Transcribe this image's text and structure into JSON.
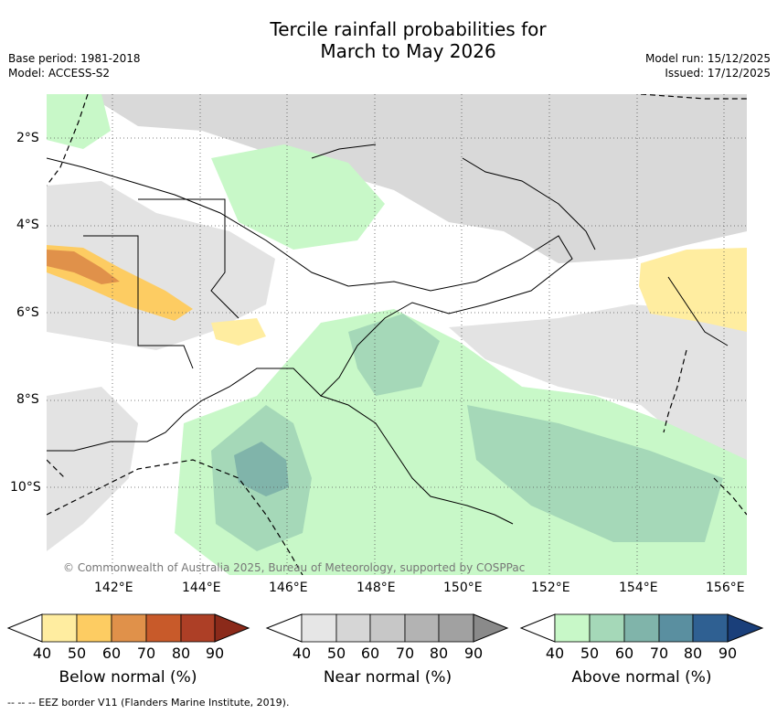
{
  "title": {
    "line1": "Tercile rainfall probabilities for",
    "line2": "March to May 2026"
  },
  "meta": {
    "base_period": "Base period: 1981-2018",
    "model": "Model: ACCESS-S2",
    "model_run": "Model run: 15/12/2025",
    "issued": "Issued: 17/12/2025"
  },
  "map": {
    "lat_labels": [
      "2°S",
      "4°S",
      "6°S",
      "8°S",
      "10°S"
    ],
    "lon_labels": [
      "142°E",
      "144°E",
      "146°E",
      "148°E",
      "150°E",
      "152°E",
      "154°E",
      "156°E"
    ],
    "copyright": "© Commonwealth of Australia 2025, Bureau of Meteorology, supported by COSPPac"
  },
  "colorbars": [
    {
      "label": "Below normal (%)",
      "ticks": [
        "40",
        "50",
        "60",
        "70",
        "80",
        "90"
      ],
      "colors": [
        "#ffeda0",
        "#fdcc62",
        "#e0914a",
        "#c85a2a",
        "#ad3f26",
        "#8b2a1a"
      ]
    },
    {
      "label": "Near normal (%)",
      "ticks": [
        "40",
        "50",
        "60",
        "70",
        "80",
        "90"
      ],
      "colors": [
        "#e6e6e6",
        "#d6d6d6",
        "#c7c7c7",
        "#b3b3b3",
        "#a1a1a1",
        "#8a8a8a"
      ]
    },
    {
      "label": "Above normal (%)",
      "ticks": [
        "40",
        "50",
        "60",
        "70",
        "80",
        "90"
      ],
      "colors": [
        "#c8f8c8",
        "#a5d8b8",
        "#80b4aa",
        "#5a8fa0",
        "#2f6092",
        "#1a3f7a"
      ]
    }
  ],
  "footer": "--  --  -- EEZ border V11 (Flanders Marine Institute, 2019)."
}
